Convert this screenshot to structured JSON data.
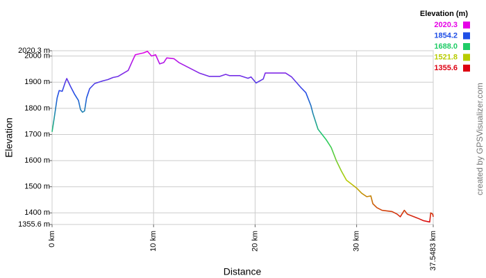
{
  "chart_data": {
    "type": "line",
    "ylabel": "Elevation",
    "xlabel": "Distance",
    "credit": "created by GPSVisualizer.com",
    "x": [
      0,
      0.2,
      0.5,
      0.7,
      1.0,
      1.3,
      1.45,
      1.8,
      2.2,
      2.6,
      2.8,
      3.0,
      3.2,
      3.4,
      3.7,
      4.2,
      5.0,
      5.5,
      6.0,
      6.5,
      7.5,
      7.9,
      8.2,
      9.0,
      9.4,
      9.8,
      10.2,
      10.6,
      11.0,
      11.3,
      12.0,
      12.5,
      13.5,
      14.5,
      15.5,
      16.5,
      17.1,
      17.5,
      18.5,
      19.3,
      19.6,
      20.1,
      20.8,
      21.0,
      22.0,
      23.0,
      23.6,
      24.5,
      25.0,
      25.5,
      25.7,
      26.2,
      27.0,
      27.5,
      28.0,
      28.5,
      29.0,
      29.5,
      30.0,
      30.5,
      31.0,
      31.4,
      31.6,
      32.0,
      32.5,
      33.5,
      34.0,
      34.3,
      34.7,
      35.0,
      36.0,
      36.6,
      37.2,
      37.3,
      37.5,
      37.5483
    ],
    "values": [
      1710,
      1760,
      1840,
      1868,
      1865,
      1900,
      1914,
      1885,
      1855,
      1830,
      1795,
      1785,
      1790,
      1840,
      1875,
      1895,
      1905,
      1910,
      1918,
      1922,
      1945,
      1980,
      2005,
      2012,
      2018,
      2000,
      2005,
      1970,
      1975,
      1993,
      1990,
      1975,
      1955,
      1935,
      1922,
      1922,
      1930,
      1925,
      1925,
      1915,
      1920,
      1897,
      1912,
      1935,
      1935,
      1935,
      1920,
      1880,
      1860,
      1810,
      1780,
      1720,
      1680,
      1650,
      1600,
      1560,
      1525,
      1510,
      1495,
      1475,
      1462,
      1465,
      1435,
      1420,
      1410,
      1405,
      1395,
      1385,
      1410,
      1395,
      1380,
      1370,
      1365,
      1400,
      1395,
      1385
    ],
    "xlim": [
      0,
      37.5483
    ],
    "ylim": [
      1355.6,
      2020.3
    ],
    "xticks": [
      {
        "value": 0,
        "label": "0 km"
      },
      {
        "value": 10,
        "label": "10 km"
      },
      {
        "value": 20,
        "label": "20 km"
      },
      {
        "value": 30,
        "label": "30 km"
      },
      {
        "value": 37.5483,
        "label": "37.5483 km"
      }
    ],
    "yticks": [
      {
        "value": 1355.6,
        "label": "1355.6 m"
      },
      {
        "value": 1400,
        "label": "1400 m"
      },
      {
        "value": 1500,
        "label": "1500 m"
      },
      {
        "value": 1600,
        "label": "1600 m"
      },
      {
        "value": 1700,
        "label": "1700 m"
      },
      {
        "value": 1800,
        "label": "1800 m"
      },
      {
        "value": 1900,
        "label": "1900 m"
      },
      {
        "value": 2000,
        "label": "2000 m"
      },
      {
        "value": 2020.3,
        "label": "2020.3 m"
      }
    ],
    "grid": true,
    "color_scale": {
      "title": "Elevation (m)",
      "values": [
        2020.3,
        1854.2,
        1688.0,
        1521.8,
        1355.6
      ],
      "value_labels": [
        "2020.3",
        "1854.2",
        "1688.0",
        "1521.8",
        "1355.6"
      ],
      "colors": [
        "#e600e6",
        "#1f4fe6",
        "#1fcc66",
        "#b8cc00",
        "#dd0011"
      ]
    }
  }
}
